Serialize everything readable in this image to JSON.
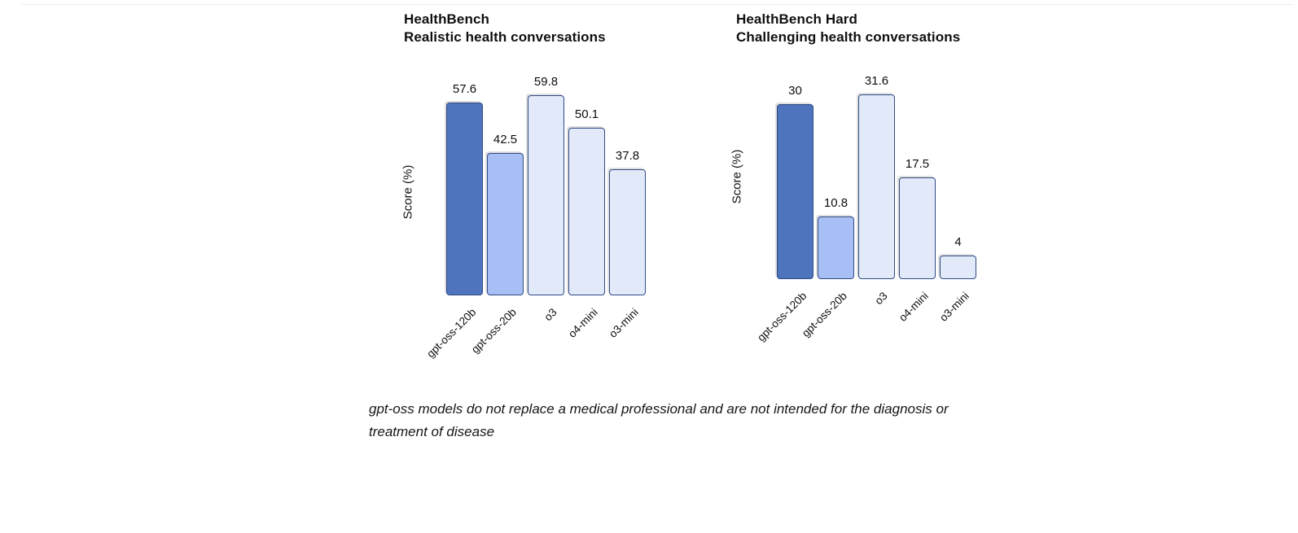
{
  "footnote": {
    "line1": "gpt-oss models do not replace a medical professional and are not intended for the diagnosis or",
    "line2": "treatment of disease"
  },
  "colors": {
    "bar_dark_blue": "#4e74bd",
    "bar_medium_blue": "#a7bff4",
    "bar_light_blue": "#e2eaf9",
    "bar_border": "#2f4a85",
    "divider": "#ececec",
    "text": "#101010"
  },
  "chart_data": [
    {
      "type": "bar",
      "title": "HealthBench",
      "subtitle": "Realistic health conversations",
      "ylabel": "Score (%)",
      "xlabel": "",
      "categories": [
        "gpt-oss-120b",
        "gpt-oss-20b",
        "o3",
        "o4-mini",
        "o3-mini"
      ],
      "values": [
        57.6,
        42.5,
        59.8,
        50.1,
        37.8
      ],
      "ylim": [
        0,
        61
      ],
      "grid": false,
      "legend": false,
      "bar_colors": [
        "#4e74bd",
        "#a7bff4",
        "#e2eaf9",
        "#e2eaf9",
        "#e2eaf9"
      ],
      "border_color": "#2f4a85",
      "tick_rotation_deg": 45
    },
    {
      "type": "bar",
      "title": "HealthBench Hard",
      "subtitle": "Challenging health conversations",
      "ylabel": "Score (%)",
      "xlabel": "",
      "categories": [
        "gpt-oss-120b",
        "gpt-oss-20b",
        "o3",
        "o4-mini",
        "o3-mini"
      ],
      "values": [
        30,
        10.8,
        31.6,
        17.5,
        4
      ],
      "ylim": [
        0,
        35
      ],
      "grid": false,
      "legend": false,
      "bar_colors": [
        "#4e74bd",
        "#a7bff4",
        "#e2eaf9",
        "#e2eaf9",
        "#e2eaf9"
      ],
      "border_color": "#2f4a85",
      "tick_rotation_deg": 45
    }
  ]
}
